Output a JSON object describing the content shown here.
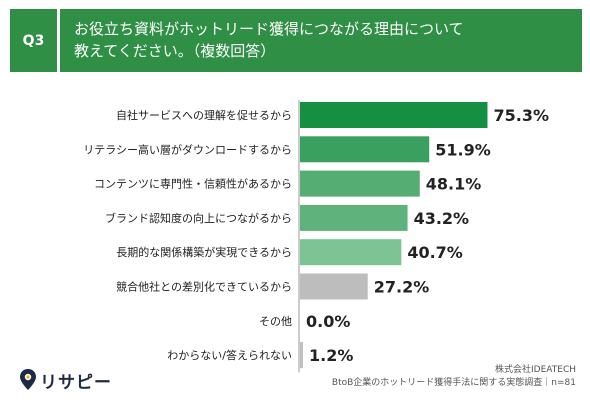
{
  "header": {
    "question_no": "Q3",
    "title": "お役立ち資料がホットリード獲得につながる理由について\n教えてください。（複数回答）"
  },
  "chart_data": {
    "type": "bar",
    "orientation": "horizontal",
    "categories": [
      "自社サービスへの理解を促せるから",
      "リテラシー高い層がダウンロードするから",
      "コンテンツに専門性・信頼性があるから",
      "ブランド認知度の向上につながるから",
      "長期的な関係構築が実現できるから",
      "競合他社との差別化できているから",
      "その他",
      "わからない/答えられない"
    ],
    "values": [
      75.3,
      51.9,
      48.1,
      43.2,
      40.7,
      27.2,
      0.0,
      1.2
    ],
    "value_labels": [
      "75.3%",
      "51.9%",
      "48.1%",
      "43.2%",
      "40.7%",
      "27.2%",
      "0.0%",
      "1.2%"
    ],
    "bar_colors": [
      "#159043",
      "#3aa060",
      "#56ad74",
      "#5fb27b",
      "#7dc494",
      "#bdbdbd",
      "#bdbdbd",
      "#bdbdbd"
    ],
    "xlim": [
      0,
      100
    ],
    "grid": false
  },
  "logo": {
    "text": "リサピー"
  },
  "footer": {
    "company": "株式会社IDEATECH",
    "source": "BtoB企業のホットリード獲得手法に関する実態調査｜n=81"
  },
  "colors": {
    "header_green": "#2e8f45",
    "logo_navy": "#1d2a44"
  }
}
